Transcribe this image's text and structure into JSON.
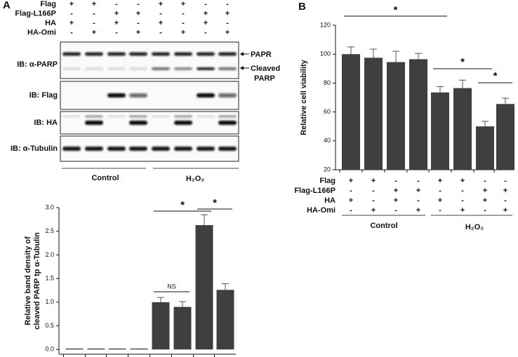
{
  "panel_labels": [
    "A",
    "B"
  ],
  "conditions": {
    "rows": [
      {
        "label": "Flag",
        "signs": [
          "+",
          "+",
          "-",
          "-",
          "+",
          "+",
          "-",
          "-"
        ]
      },
      {
        "label": "Flag-L166P",
        "signs": [
          "-",
          "-",
          "+",
          "+",
          "-",
          "-",
          "+",
          "+"
        ]
      },
      {
        "label": "HA",
        "signs": [
          "+",
          "-",
          "+",
          "-",
          "+",
          "-",
          "+",
          "-"
        ]
      },
      {
        "label": "HA-Omi",
        "signs": [
          "-",
          "+",
          "-",
          "+",
          "-",
          "+",
          "-",
          "+"
        ]
      }
    ],
    "groups": [
      "Control",
      "H₂O₂"
    ]
  },
  "blot": {
    "probes": [
      "IB: α-PARP",
      "IB: Flag",
      "IB: HA",
      "IB: α-Tubulin"
    ],
    "band_labels": [
      "PAPR",
      "Cleaved",
      "PARP"
    ]
  },
  "chart_data": [
    {
      "type": "bar",
      "ylabel": [
        "Relative band density of",
        "cleaved PARP tp α-Tubulin"
      ],
      "categories": [
        null,
        null,
        null,
        null,
        null,
        null,
        null,
        null
      ],
      "values": [
        0.02,
        0.02,
        0.02,
        0.02,
        1.0,
        0.9,
        2.63,
        1.26
      ],
      "errors": [
        null,
        null,
        null,
        null,
        0.1,
        0.11,
        0.22,
        0.13
      ],
      "color": "#3f3f3f",
      "ylim": [
        -0.1,
        3.0
      ],
      "yticks": [
        {
          "value": 0,
          "label": "0.0"
        },
        0.5,
        {
          "value": 1,
          "label": "1.0"
        },
        1.5,
        {
          "value": 2,
          "label": "2.0"
        },
        2.5,
        {
          "value": 3,
          "label": "3.0"
        }
      ],
      "annotations": [
        "NS",
        "*",
        "*"
      ]
    },
    {
      "type": "bar",
      "ylabel": "Relative cell viability",
      "categories": [
        null,
        null,
        null,
        null,
        null,
        null,
        null,
        null
      ],
      "values": [
        100,
        97.5,
        94.5,
        96.5,
        73.5,
        76.5,
        50,
        65.5
      ],
      "errors": [
        5,
        6,
        7.5,
        4,
        4,
        5.5,
        3.5,
        4
      ],
      "color": "#3f3f3f",
      "ylim": [
        20,
        120
      ],
      "yticks": [
        20,
        40,
        60,
        80,
        100,
        120
      ],
      "annotations": [
        "*",
        "*",
        "*"
      ]
    }
  ]
}
